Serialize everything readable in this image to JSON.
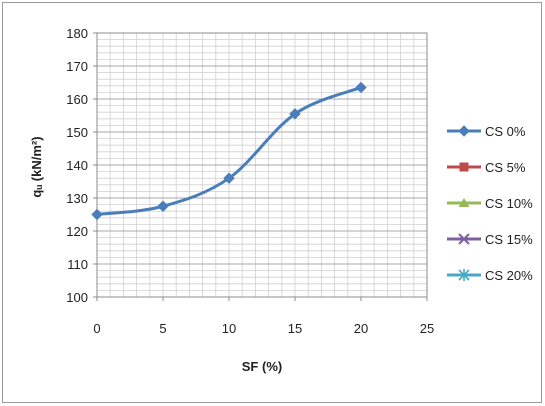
{
  "chart_data": {
    "type": "line",
    "title": "",
    "xlabel": "SF (%)",
    "ylabel": "qᵤ (kN/m²)",
    "xlim": [
      0,
      25
    ],
    "ylim": [
      100,
      180
    ],
    "xticks": [
      "0",
      "5",
      "10",
      "15",
      "20",
      "25"
    ],
    "yticks": [
      "100",
      "110",
      "120",
      "130",
      "140",
      "150",
      "160",
      "170",
      "180"
    ],
    "grid": true,
    "smooth": true,
    "legend_position": "right",
    "series": [
      {
        "name": "CS 0%",
        "color": "#4a7ebb",
        "marker": "diamond",
        "x": [
          0,
          5,
          10,
          15,
          20
        ],
        "y": [
          125,
          127.5,
          136,
          155.5,
          163.5
        ]
      },
      {
        "name": "CS 5%",
        "color": "#be4b48",
        "marker": "square",
        "x": [],
        "y": []
      },
      {
        "name": "CS 10%",
        "color": "#98b954",
        "marker": "triangle",
        "x": [],
        "y": []
      },
      {
        "name": "CS 15%",
        "color": "#7d60a0",
        "marker": "cross",
        "x": [],
        "y": []
      },
      {
        "name": "CS 20%",
        "color": "#46aac5",
        "marker": "star",
        "x": [],
        "y": []
      }
    ]
  }
}
